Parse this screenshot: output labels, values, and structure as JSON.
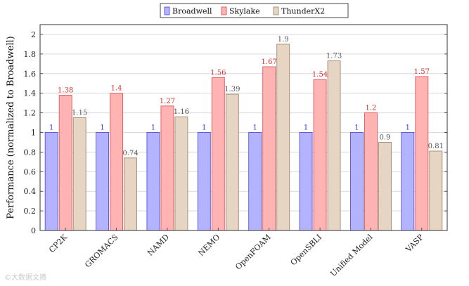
{
  "chart_data": {
    "type": "bar",
    "title": "",
    "xlabel": "",
    "ylabel": "Performance (normalized to Broadwell)",
    "ylim": [
      0,
      2.1
    ],
    "yticks": [
      0,
      0.2,
      0.4,
      0.6,
      0.8,
      1,
      1.2,
      1.4,
      1.6,
      1.8,
      2
    ],
    "ytick_labels": [
      "0",
      "0.2",
      "0.4",
      "0.6",
      "0.8",
      "1",
      "1.2",
      "1.4",
      "1.6",
      "1.8",
      "2"
    ],
    "grid": true,
    "legend_position": "top-center",
    "categories": [
      "CP2K",
      "GROMACS",
      "NAMD",
      "NEMO",
      "OpenFOAM",
      "OpenSBLI",
      "Unified Model",
      "VASP"
    ],
    "series": [
      {
        "name": "Broadwell",
        "values": [
          1,
          1,
          1,
          1,
          1,
          1,
          1,
          1
        ],
        "labels": [
          "1",
          "1",
          "1",
          "1",
          "1",
          "1",
          "1",
          "1"
        ],
        "fill": "#b3b3ff",
        "stroke": "#5555dd",
        "label_color": "#3a3acc"
      },
      {
        "name": "Skylake",
        "values": [
          1.38,
          1.4,
          1.27,
          1.56,
          1.67,
          1.54,
          1.2,
          1.57
        ],
        "labels": [
          "1.38",
          "1.4",
          "1.27",
          "1.56",
          "1.67",
          "1.54",
          "1.2",
          "1.57"
        ],
        "fill": "#ffb3b3",
        "stroke": "#e05a5a",
        "label_color": "#d43030"
      },
      {
        "name": "ThunderX2",
        "values": [
          1.15,
          0.74,
          1.16,
          1.39,
          1.9,
          1.73,
          0.9,
          0.81
        ],
        "labels": [
          "1.15",
          "0.74",
          "1.16",
          "1.39",
          "1.9",
          "1.73",
          "0.9",
          "0.81"
        ],
        "fill": "#e6d5c2",
        "stroke": "#a08a73",
        "label_color": "#555555"
      }
    ]
  },
  "watermark": "©大数据文摘"
}
